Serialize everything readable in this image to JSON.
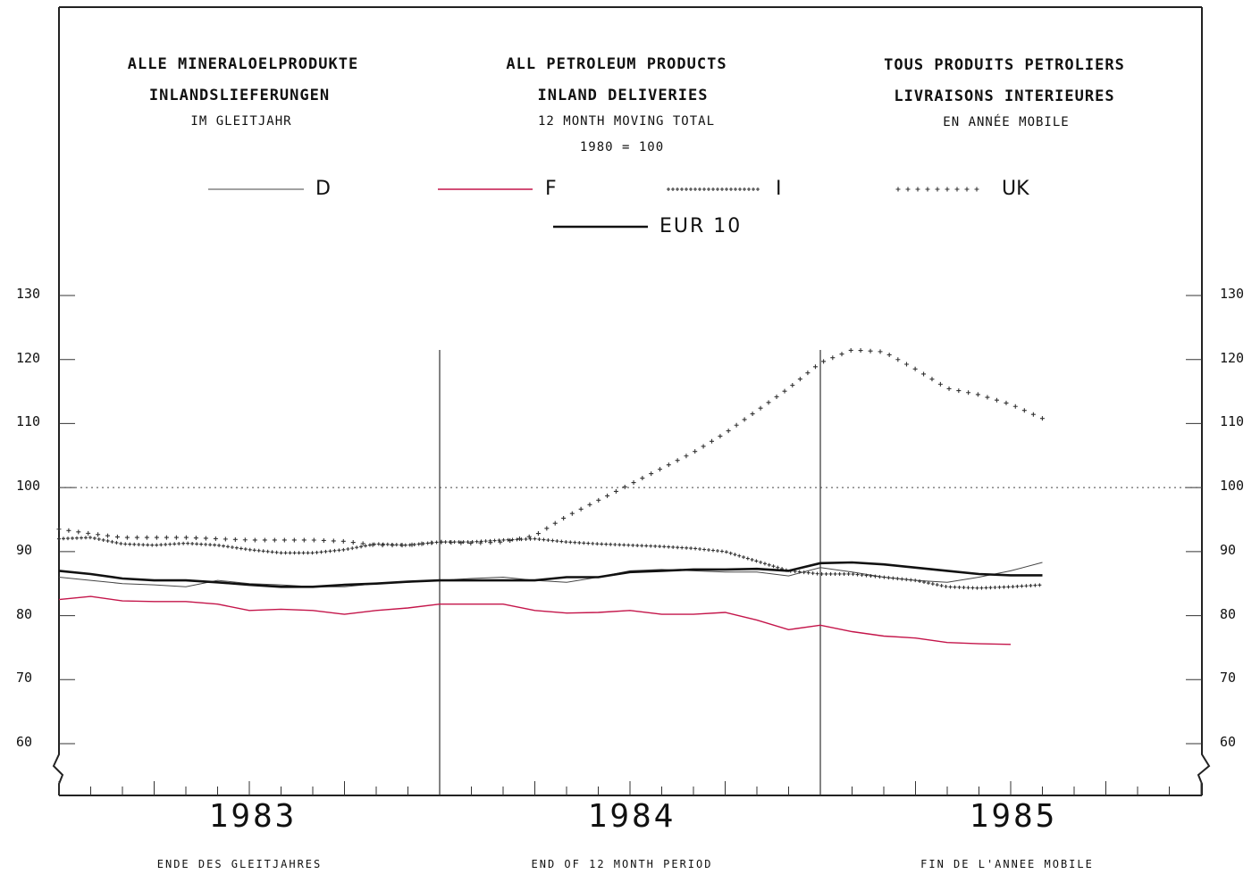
{
  "titles": {
    "de": {
      "line1": "ALLE MINERALOELPRODUKTE",
      "line2": "INLANDSLIEFERUNGEN",
      "line3": "IM GLEITJAHR"
    },
    "en": {
      "line1": "ALL PETROLEUM PRODUCTS",
      "line2": "INLAND DELIVERIES",
      "line3": "12 MONTH MOVING TOTAL",
      "base": "1980 = 100"
    },
    "fr": {
      "line1": "TOUS PRODUITS PETROLIERS",
      "line2": "LIVRAISONS INTERIEURES",
      "line3": "EN ANNÉE MOBILE"
    }
  },
  "footer": {
    "de": "ENDE DES GLEITJAHRES",
    "en": "END OF 12 MONTH PERIOD",
    "fr": "FIN DE L'ANNEE MOBILE"
  },
  "chart_data": {
    "type": "line",
    "x_unit": "month",
    "x_labels": [
      "1983",
      "1984",
      "1985"
    ],
    "yticks": [
      60,
      70,
      80,
      90,
      100,
      110,
      120,
      130
    ],
    "ylim": [
      53,
      131
    ],
    "reference_line": 100,
    "series": [
      {
        "name": "D",
        "color": "#444444",
        "style": "thin",
        "x": [
          0,
          1,
          2,
          3,
          4,
          5,
          6,
          7,
          8,
          9,
          10,
          11,
          12,
          13,
          14,
          15,
          16,
          17,
          18,
          19,
          20,
          21,
          22,
          23,
          24,
          25,
          26,
          27,
          28,
          29,
          30,
          31
        ],
        "values": [
          86.0,
          85.5,
          85.0,
          84.8,
          84.5,
          85.5,
          85.0,
          84.8,
          84.5,
          84.5,
          85.0,
          85.2,
          85.5,
          85.8,
          86.0,
          85.5,
          85.2,
          86.0,
          87.0,
          87.2,
          87.0,
          86.8,
          86.8,
          86.2,
          87.5,
          86.8,
          86.0,
          85.5,
          85.2,
          86.0,
          87.0,
          88.3
        ]
      },
      {
        "name": "F",
        "color": "#c4154a",
        "style": "red",
        "x": [
          0,
          1,
          2,
          3,
          4,
          5,
          6,
          7,
          8,
          9,
          10,
          11,
          12,
          13,
          14,
          15,
          16,
          17,
          18,
          19,
          20,
          21,
          22,
          23,
          24,
          25,
          26,
          27,
          28,
          29,
          30
        ],
        "values": [
          82.5,
          83.0,
          82.3,
          82.2,
          82.2,
          81.8,
          80.8,
          81.0,
          80.8,
          80.2,
          80.8,
          81.2,
          81.8,
          81.8,
          81.8,
          80.8,
          80.4,
          80.5,
          80.8,
          80.2,
          80.2,
          80.5,
          79.3,
          77.8,
          78.5,
          77.5,
          76.8,
          76.5,
          75.8,
          75.6,
          75.5
        ]
      },
      {
        "name": "I",
        "color": "#333333",
        "style": "dense-plus",
        "x": [
          0,
          1,
          2,
          3,
          4,
          5,
          6,
          7,
          8,
          9,
          10,
          11,
          12,
          13,
          14,
          15,
          16,
          17,
          18,
          19,
          20,
          21,
          22,
          23,
          24,
          25,
          26,
          27,
          28,
          29,
          30,
          31
        ],
        "values": [
          92.0,
          92.2,
          91.2,
          91.0,
          91.3,
          91.0,
          90.3,
          89.8,
          89.8,
          90.3,
          91.2,
          91.0,
          91.5,
          91.5,
          91.8,
          92.0,
          91.5,
          91.2,
          91.0,
          90.8,
          90.5,
          90.0,
          88.5,
          87.0,
          86.5,
          86.5,
          86.0,
          85.5,
          84.5,
          84.3,
          84.5,
          84.8
        ]
      },
      {
        "name": "UK",
        "color": "#333333",
        "style": "sparse-plus",
        "x": [
          0,
          1,
          2,
          3,
          4,
          5,
          6,
          7,
          8,
          9,
          10,
          11,
          12,
          13,
          14,
          15,
          16,
          17,
          18,
          19,
          20,
          21,
          22,
          23,
          24,
          25,
          26,
          27,
          28,
          29,
          30,
          31
        ],
        "values": [
          93.5,
          92.8,
          92.2,
          92.2,
          92.2,
          92.0,
          91.8,
          91.8,
          91.8,
          91.6,
          91.0,
          91.0,
          91.5,
          91.3,
          91.5,
          92.5,
          95.5,
          98.0,
          100.5,
          103.0,
          105.5,
          108.5,
          112.0,
          115.5,
          119.5,
          121.5,
          121.2,
          118.5,
          115.5,
          114.5,
          113.0,
          110.8
        ]
      },
      {
        "name": "EUR 10",
        "color": "#111111",
        "style": "thick",
        "x": [
          0,
          1,
          2,
          3,
          4,
          5,
          6,
          7,
          8,
          9,
          10,
          11,
          12,
          13,
          14,
          15,
          16,
          17,
          18,
          19,
          20,
          21,
          22,
          23,
          24,
          25,
          26,
          27,
          28,
          29,
          30,
          31
        ],
        "values": [
          87.0,
          86.5,
          85.8,
          85.5,
          85.5,
          85.2,
          84.8,
          84.5,
          84.5,
          84.8,
          85.0,
          85.3,
          85.5,
          85.5,
          85.5,
          85.5,
          86.0,
          86.0,
          86.8,
          87.0,
          87.2,
          87.2,
          87.3,
          87.0,
          88.2,
          88.3,
          88.0,
          87.5,
          87.0,
          86.5,
          86.3,
          86.3
        ]
      }
    ],
    "legend": [
      "D",
      "F",
      "I",
      "UK",
      "EUR 10"
    ],
    "legend_placement": "top-center",
    "grid": false
  }
}
